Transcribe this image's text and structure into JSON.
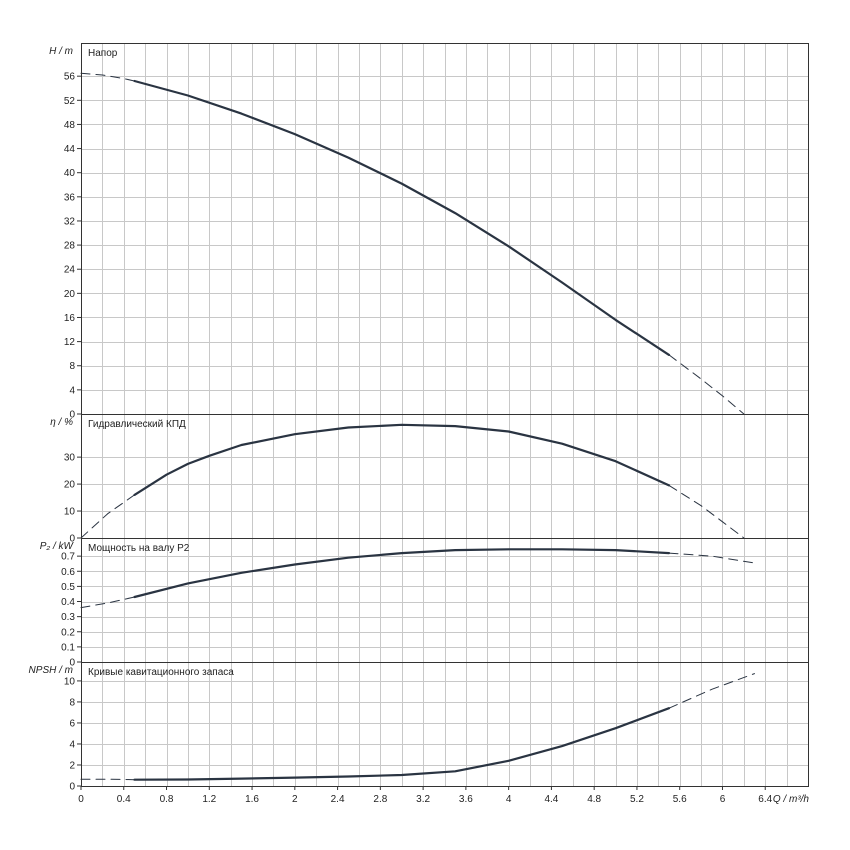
{
  "colors": {
    "curve": "#2a3442",
    "grid": "#c8c8c8",
    "frame": "#333333"
  },
  "x_axis": {
    "label": "Q / m³/h",
    "range": [
      0,
      6.8
    ],
    "ticks": [
      "0",
      "0.4",
      "0.8",
      "1.2",
      "1.6",
      "2",
      "2.4",
      "2.8",
      "3.2",
      "3.6",
      "4",
      "4.4",
      "4.8",
      "5.2",
      "5.6",
      "6",
      "6.4"
    ]
  },
  "chart_data": [
    {
      "type": "line",
      "title": "Напор",
      "ylabel": "H / m",
      "ylim": [
        0,
        61.5
      ],
      "yticks": [
        0,
        4,
        8,
        12,
        16,
        20,
        24,
        28,
        32,
        36,
        40,
        44,
        48,
        52,
        56
      ],
      "grid": true,
      "series": [
        {
          "style": "dashed",
          "x": [
            0,
            0.2,
            0.4,
            0.5
          ],
          "y": [
            56.5,
            56.2,
            55.6,
            55.2
          ]
        },
        {
          "style": "solid",
          "x": [
            0.5,
            1.0,
            1.5,
            2.0,
            2.5,
            3.0,
            3.5,
            4.0,
            4.5,
            5.0,
            5.5
          ],
          "y": [
            55.2,
            52.8,
            49.8,
            46.4,
            42.5,
            38.2,
            33.3,
            27.8,
            21.8,
            15.6,
            9.8
          ]
        },
        {
          "style": "dashed",
          "x": [
            5.5,
            5.8,
            6.0,
            6.2
          ],
          "y": [
            9.8,
            5.8,
            3.0,
            0
          ]
        }
      ]
    },
    {
      "type": "line",
      "title": "Гидравлический КПД",
      "ylabel": "η / %",
      "ylim": [
        0,
        46
      ],
      "yticks": [
        0,
        10,
        20,
        30
      ],
      "grid": true,
      "series": [
        {
          "style": "dashed",
          "x": [
            0,
            0.25,
            0.5
          ],
          "y": [
            0,
            9,
            16
          ]
        },
        {
          "style": "solid",
          "x": [
            0.5,
            0.8,
            1.0,
            1.2,
            1.5,
            2.0,
            2.5,
            3.0,
            3.5,
            4.0,
            4.5,
            5.0,
            5.5
          ],
          "y": [
            16,
            23.5,
            27.5,
            30.5,
            34.5,
            38.5,
            41.0,
            42.0,
            41.5,
            39.5,
            35.0,
            28.5,
            19.5
          ]
        },
        {
          "style": "dashed",
          "x": [
            5.5,
            5.8,
            6.0,
            6.2
          ],
          "y": [
            19.5,
            12,
            6,
            0
          ]
        }
      ]
    },
    {
      "type": "line",
      "title": "Мощность на валу P2",
      "ylabel": "P₂ / kW",
      "ylim": [
        0,
        0.82
      ],
      "yticks": [
        0,
        0.1,
        0.2,
        0.3,
        0.4,
        0.5,
        0.6,
        0.7
      ],
      "grid": true,
      "series": [
        {
          "style": "dashed",
          "x": [
            0,
            0.25,
            0.5
          ],
          "y": [
            0.36,
            0.39,
            0.43
          ]
        },
        {
          "style": "solid",
          "x": [
            0.5,
            1.0,
            1.5,
            2.0,
            2.5,
            3.0,
            3.5,
            4.0,
            4.5,
            5.0,
            5.5
          ],
          "y": [
            0.43,
            0.52,
            0.59,
            0.645,
            0.69,
            0.72,
            0.74,
            0.745,
            0.745,
            0.74,
            0.72
          ]
        },
        {
          "style": "dashed",
          "x": [
            5.5,
            5.9,
            6.3
          ],
          "y": [
            0.72,
            0.7,
            0.655
          ]
        }
      ]
    },
    {
      "type": "line",
      "title": "Кривые кавитационного запаса",
      "ylabel": "NPSH / m",
      "ylim": [
        0,
        11.8
      ],
      "yticks": [
        0,
        2,
        4,
        6,
        8,
        10
      ],
      "grid": true,
      "series": [
        {
          "style": "dashed",
          "x": [
            0,
            0.25,
            0.5
          ],
          "y": [
            0.65,
            0.65,
            0.6
          ]
        },
        {
          "style": "solid",
          "x": [
            0.5,
            1.0,
            1.5,
            2.0,
            2.5,
            3.0,
            3.5,
            4.0,
            4.5,
            5.0,
            5.5
          ],
          "y": [
            0.6,
            0.62,
            0.7,
            0.8,
            0.9,
            1.05,
            1.4,
            2.4,
            3.8,
            5.5,
            7.4
          ]
        },
        {
          "style": "dashed",
          "x": [
            5.5,
            5.9,
            6.3
          ],
          "y": [
            7.4,
            9.2,
            10.7
          ]
        }
      ]
    }
  ]
}
